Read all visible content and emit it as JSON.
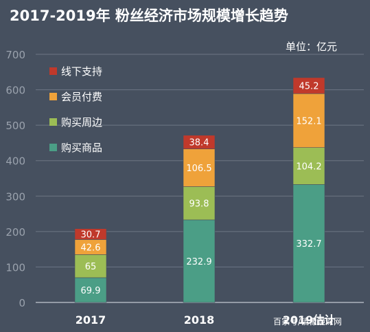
{
  "chart_data": {
    "type": "bar",
    "stacked": true,
    "title": "2017-2019年 粉丝经济市场规模增长趋势",
    "unit_label": "单位：亿元",
    "categories": [
      "2017",
      "2018",
      "2019估计"
    ],
    "ylim": [
      0,
      700
    ],
    "yticks": [
      0,
      100,
      200,
      300,
      400,
      500,
      600,
      700
    ],
    "grid": true,
    "legend_position": "top-left",
    "series": [
      {
        "name": "购买商品",
        "values": [
          69.9,
          232.9,
          332.7
        ],
        "color": "#4b9e86"
      },
      {
        "name": "购买周边",
        "values": [
          65,
          93.8,
          104.2
        ],
        "color": "#9cbd55"
      },
      {
        "name": "会员付费",
        "values": [
          42.6,
          106.5,
          152.1
        ],
        "color": "#efa23a"
      },
      {
        "name": "线下支持",
        "values": [
          30.7,
          38.4,
          45.2
        ],
        "color": "#c0392b"
      }
    ],
    "legend_order": [
      3,
      2,
      1,
      0
    ]
  },
  "watermark": "百家号/镜像镜深网"
}
